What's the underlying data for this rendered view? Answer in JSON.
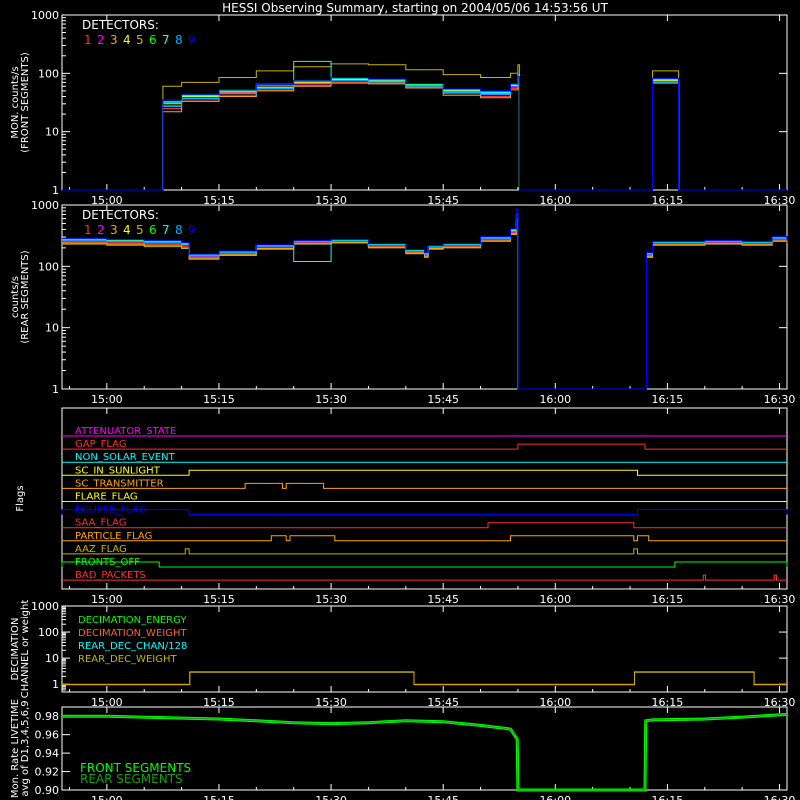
{
  "colors": {
    "background": "#000000",
    "axis": "#ffffff",
    "detectors": [
      "#ff3030",
      "#ff00ff",
      "#ffa500",
      "#ffff00",
      "#c8b400",
      "#00ff00",
      "#00ffff",
      "#00b0ff",
      "#0000ff"
    ]
  },
  "chart_data": [
    {
      "type": "line",
      "panel": "front",
      "title": "HESSI Observing Summary, starting on 2004/05/06 14:53:56 UT",
      "ylabel": [
        "MON. counts/s",
        "(FRONT SEGMENTS)"
      ],
      "y_scale": "log",
      "ylim": [
        1,
        1000
      ],
      "y_ticks": [
        "1",
        "10",
        "100",
        "1000"
      ],
      "xlim_minutes": [
        -6.0,
        91.0
      ],
      "x_ticks": [
        "15:00",
        "15:15",
        "15:30",
        "15:45",
        "16:00",
        "16:15",
        "16:30"
      ],
      "x_tick_minutes": [
        0,
        15,
        30,
        45,
        60,
        75,
        90
      ],
      "legend_title": "DETECTORS:",
      "legend_labels": [
        "1",
        "2",
        "3",
        "4",
        "5",
        "6",
        "7",
        "8",
        "9"
      ],
      "legend_placement": "top-left",
      "data_minutes": [
        -6,
        7,
        7.5,
        10,
        15,
        20,
        25,
        30,
        35,
        40,
        45,
        50,
        54,
        55,
        55.2,
        72,
        73,
        74,
        76,
        76.5,
        91
      ],
      "series": [
        {
          "values": [
            1,
            1,
            25,
            35,
            42,
            52,
            62,
            70,
            68,
            58,
            45,
            40,
            55,
            70,
            1,
            1,
            70,
            70,
            70,
            1,
            1
          ]
        },
        {
          "values": [
            1,
            1,
            28,
            38,
            46,
            56,
            66,
            74,
            72,
            62,
            48,
            44,
            60,
            75,
            1,
            1,
            72,
            72,
            72,
            1,
            1
          ]
        },
        {
          "values": [
            1,
            1,
            22,
            33,
            40,
            50,
            60,
            68,
            66,
            56,
            42,
            38,
            52,
            66,
            1,
            1,
            68,
            68,
            68,
            1,
            1
          ]
        },
        {
          "values": [
            1,
            1,
            30,
            40,
            48,
            58,
            70,
            78,
            75,
            64,
            50,
            46,
            62,
            80,
            1,
            1,
            75,
            75,
            75,
            1,
            1
          ]
        },
        {
          "values": [
            1,
            1,
            60,
            70,
            85,
            110,
            130,
            145,
            140,
            115,
            95,
            85,
            100,
            140,
            1,
            1,
            110,
            110,
            110,
            1,
            1
          ]
        },
        {
          "values": [
            1,
            1,
            33,
            42,
            50,
            62,
            74,
            82,
            78,
            66,
            52,
            48,
            65,
            85,
            1,
            1,
            78,
            78,
            78,
            1,
            1
          ]
        },
        {
          "values": [
            1,
            1,
            32,
            41,
            52,
            65,
            160,
            80,
            74,
            63,
            52,
            47,
            64,
            95,
            1,
            1,
            80,
            80,
            80,
            1,
            1
          ]
        },
        {
          "values": [
            1,
            1,
            27,
            37,
            45,
            55,
            67,
            75,
            71,
            60,
            47,
            43,
            58,
            74,
            1,
            1,
            70,
            70,
            70,
            1,
            1
          ]
        },
        {
          "values": [
            1,
            1,
            35,
            44,
            52,
            64,
            76,
            84,
            80,
            67,
            54,
            50,
            66,
            88,
            1,
            1,
            82,
            82,
            82,
            1,
            1
          ]
        }
      ]
    },
    {
      "type": "line",
      "panel": "rear",
      "ylabel": [
        "counts/s",
        "(REAR SEGMENTS)"
      ],
      "y_scale": "log",
      "ylim": [
        1,
        1000
      ],
      "y_ticks": [
        "1",
        "10",
        "100",
        "1000"
      ],
      "xlim_minutes": [
        -6.0,
        91.0
      ],
      "x_ticks": [
        "15:00",
        "15:15",
        "15:30",
        "15:45",
        "16:00",
        "16:15",
        "16:30"
      ],
      "x_tick_minutes": [
        0,
        15,
        30,
        45,
        60,
        75,
        90
      ],
      "legend_title": "DETECTORS:",
      "legend_labels": [
        "1",
        "2",
        "3",
        "4",
        "5",
        "6",
        "7",
        "8",
        "9"
      ],
      "legend_placement": "top-left",
      "data_minutes": [
        -6,
        0,
        5,
        10,
        11,
        15,
        20,
        25,
        30,
        35,
        40,
        42.5,
        43,
        45,
        50,
        54,
        54.8,
        55,
        72,
        72.2,
        73,
        80,
        85,
        88,
        89,
        91
      ],
      "series": [
        {
          "values": [
            250,
            240,
            230,
            210,
            140,
            160,
            200,
            240,
            250,
            210,
            170,
            150,
            200,
            210,
            270,
            350,
            500,
            1,
            1,
            150,
            230,
            240,
            230,
            230,
            270,
            250
          ]
        },
        {
          "values": [
            260,
            250,
            240,
            220,
            145,
            165,
            210,
            250,
            260,
            220,
            175,
            155,
            205,
            220,
            280,
            360,
            520,
            1,
            1,
            155,
            240,
            250,
            240,
            240,
            280,
            260
          ]
        },
        {
          "values": [
            240,
            230,
            220,
            200,
            135,
            155,
            195,
            235,
            245,
            205,
            165,
            145,
            195,
            205,
            260,
            340,
            480,
            1,
            1,
            145,
            225,
            235,
            225,
            225,
            260,
            245
          ]
        },
        {
          "values": [
            270,
            260,
            250,
            230,
            150,
            170,
            215,
            255,
            265,
            225,
            180,
            160,
            210,
            225,
            290,
            380,
            560,
            1,
            1,
            160,
            245,
            255,
            245,
            245,
            290,
            265
          ]
        },
        {
          "values": [
            230,
            220,
            210,
            195,
            130,
            150,
            190,
            230,
            240,
            200,
            160,
            140,
            190,
            200,
            255,
            330,
            470,
            1,
            1,
            140,
            220,
            230,
            220,
            220,
            255,
            240
          ]
        },
        {
          "values": [
            275,
            265,
            255,
            235,
            152,
            172,
            218,
            258,
            268,
            228,
            182,
            162,
            212,
            228,
            292,
            390,
            600,
            1,
            1,
            162,
            248,
            258,
            248,
            248,
            292,
            268
          ]
        },
        {
          "values": [
            280,
            270,
            260,
            240,
            155,
            175,
            220,
            120,
            270,
            230,
            185,
            165,
            215,
            230,
            300,
            400,
            700,
            1,
            1,
            165,
            250,
            260,
            250,
            250,
            300,
            270
          ]
        },
        {
          "values": [
            265,
            255,
            245,
            225,
            148,
            168,
            212,
            252,
            262,
            222,
            178,
            158,
            208,
            222,
            285,
            370,
            540,
            1,
            1,
            158,
            242,
            252,
            242,
            242,
            285,
            262
          ]
        },
        {
          "values": [
            285,
            275,
            265,
            245,
            158,
            178,
            225,
            265,
            275,
            235,
            188,
            168,
            218,
            235,
            305,
            410,
            850,
            1,
            1,
            168,
            255,
            265,
            255,
            255,
            305,
            275
          ]
        }
      ]
    },
    {
      "type": "line",
      "panel": "flags",
      "ylabel": [
        "Flags"
      ],
      "xlim_minutes": [
        -6.0,
        91.0
      ],
      "x_ticks": [
        "15:00",
        "15:15",
        "15:30",
        "15:45",
        "16:00",
        "16:15",
        "16:30"
      ],
      "x_tick_minutes": [
        0,
        15,
        30,
        45,
        60,
        75,
        90
      ],
      "flags": [
        {
          "label": "ATTENUATOR_STATE",
          "color": "#ff00ff",
          "on": []
        },
        {
          "label": "GAP_FLAG",
          "color": "#ff3030",
          "on": [
            [
              55,
              72
            ]
          ]
        },
        {
          "label": "NON_SOLAR_EVENT",
          "color": "#00ffff",
          "on": []
        },
        {
          "label": "SC_IN_SUNLIGHT",
          "color": "#ffff00",
          "on": [
            [
              11,
              71
            ]
          ]
        },
        {
          "label": "SC_TRANSMITTER",
          "color": "#ffa500",
          "on": [
            [
              18.5,
              23.5
            ],
            [
              24,
              29
            ]
          ]
        },
        {
          "label": "FLARE_FLAG",
          "color": "#ffff00",
          "on": []
        },
        {
          "label": "ECLIPSE_FLAG",
          "color": "#0000ff",
          "on": [
            [
              -6,
              11
            ],
            [
              71,
              91
            ]
          ]
        },
        {
          "label": "SAA_FLAG",
          "color": "#ff3030",
          "on": [
            [
              51,
              70.5
            ]
          ]
        },
        {
          "label": "PARTICLE_FLAG",
          "color": "#ffa500",
          "on": [
            [
              22,
              24
            ],
            [
              24.5,
              30.5
            ],
            [
              54,
              70.5
            ],
            [
              71,
              72.5
            ]
          ]
        },
        {
          "label": "AAZ_FLAG",
          "color": "#c8b400",
          "on": [
            [
              10.5,
              11
            ],
            [
              70.5,
              71
            ]
          ]
        },
        {
          "label": "FRONTS_OFF",
          "color": "#00ff00",
          "on": [
            [
              -6,
              7
            ],
            [
              76,
              91
            ]
          ]
        },
        {
          "label": "BAD_PACKETS",
          "color": "#ff3030",
          "on": [
            [
              79.8,
              80.1
            ],
            [
              89.3,
              89.6
            ]
          ]
        }
      ]
    },
    {
      "type": "line",
      "panel": "decimation",
      "ylabel": [
        "DECIMATION",
        "CHANNEL or weight"
      ],
      "y_scale": "log",
      "ylim": [
        0.5,
        1000
      ],
      "y_ticks": [
        "1",
        "10",
        "100",
        "1000"
      ],
      "xlim_minutes": [
        -6.0,
        91.0
      ],
      "x_ticks": [
        "15:00",
        "15:15",
        "15:30",
        "15:45",
        "16:00",
        "16:15",
        "16:30"
      ],
      "x_tick_minutes": [
        0,
        15,
        30,
        45,
        60,
        75,
        90
      ],
      "legend_labels": [
        "DECIMATION_ENERGY",
        "DECIMATION_WEIGHT",
        "REAR_DEC_CHAN/128",
        "REAR_DEC_WEIGHT"
      ],
      "legend_colors": [
        "#00ff00",
        "#ff6030",
        "#00ffff",
        "#c8b400"
      ],
      "legend_placement": "top-left",
      "data_minutes": [
        -6,
        11,
        11.1,
        41,
        41.1,
        70.5,
        70.6,
        86.5,
        86.6,
        91
      ],
      "series": [
        {
          "values": [
            1,
            1,
            3,
            3,
            1,
            1,
            3,
            3,
            1,
            1
          ]
        }
      ]
    },
    {
      "type": "line",
      "panel": "livetime",
      "ylabel": [
        "Mon. Rate LIVETIME",
        "avg of D1,3,4,5,6,9"
      ],
      "ylim": [
        0.9,
        0.99
      ],
      "y_ticks": [
        "0.90",
        "0.92",
        "0.94",
        "0.96",
        "0.98"
      ],
      "y_tick_values": [
        0.9,
        0.92,
        0.94,
        0.96,
        0.98
      ],
      "xlim_minutes": [
        -6.0,
        91.0
      ],
      "x_ticks": [
        "15:00",
        "15:15",
        "15:30",
        "15:45",
        "16:00",
        "16:15",
        "16:30"
      ],
      "x_tick_minutes": [
        0,
        15,
        30,
        45,
        60,
        75,
        90
      ],
      "legend_labels": [
        "FRONT SEGMENTS",
        "REAR SEGMENTS"
      ],
      "legend_colors": [
        "#00ff00",
        "#10a010"
      ],
      "legend_placement": "bottom-left",
      "data_minutes": [
        -6,
        0,
        10,
        15,
        20,
        25,
        30,
        35,
        40,
        45,
        50,
        54,
        54.9,
        55,
        72,
        72.1,
        73,
        80,
        85,
        91
      ],
      "series": [
        {
          "values": [
            0.98,
            0.98,
            0.978,
            0.977,
            0.975,
            0.973,
            0.972,
            0.973,
            0.975,
            0.974,
            0.97,
            0.966,
            0.955,
            0.9,
            0.9,
            0.975,
            0.976,
            0.977,
            0.979,
            0.982
          ]
        }
      ]
    }
  ]
}
